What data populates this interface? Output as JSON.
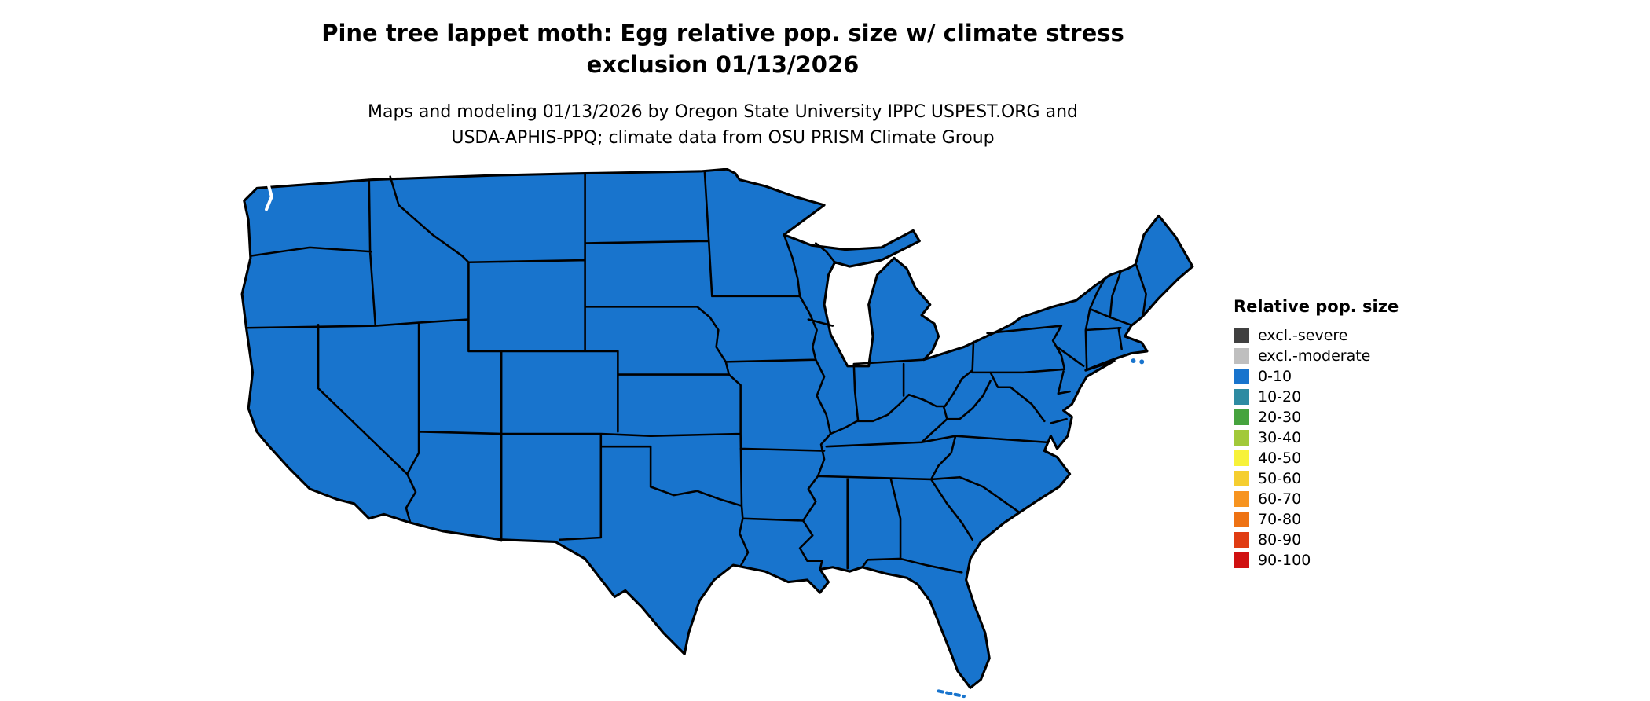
{
  "title": {
    "line1": "Pine tree lappet moth: Egg relative pop. size w/ climate stress",
    "line2": "exclusion 01/13/2026"
  },
  "subtitle": {
    "line1": "Maps and modeling 01/13/2026 by Oregon State University IPPC USPEST.ORG and",
    "line2": "USDA-APHIS-PPQ; climate data from OSU PRISM Climate Group"
  },
  "legend": {
    "title": "Relative pop. size",
    "entries": [
      {
        "label": "excl.-severe",
        "color": "#404040"
      },
      {
        "label": "excl.-moderate",
        "color": "#bfbfbf"
      },
      {
        "label": "0-10",
        "color": "#1874CD"
      },
      {
        "label": "10-20",
        "color": "#2E8BA2"
      },
      {
        "label": "20-30",
        "color": "#46A33E"
      },
      {
        "label": "30-40",
        "color": "#A2C93A"
      },
      {
        "label": "40-50",
        "color": "#F7F23A"
      },
      {
        "label": "50-60",
        "color": "#F5CE30"
      },
      {
        "label": "60-70",
        "color": "#F79420"
      },
      {
        "label": "70-80",
        "color": "#EE7213"
      },
      {
        "label": "80-90",
        "color": "#E03C12"
      },
      {
        "label": "90-100",
        "color": "#D01111"
      }
    ]
  },
  "map": {
    "region": "Contiguous United States",
    "land_fill": "#1874CD",
    "border_color": "#000000",
    "water_detail_color": "#3E8FD6",
    "uniform_class": "0-10"
  },
  "chart_data": {
    "type": "heatmap",
    "subtype": "choropleth-map",
    "region": "contiguous United States (48 states, state boundaries shown)",
    "date_shown": "01/13/2026",
    "value_classes": [
      "excl.-severe",
      "excl.-moderate",
      "0-10",
      "10-20",
      "20-30",
      "30-40",
      "40-50",
      "50-60",
      "60-70",
      "70-80",
      "80-90",
      "90-100"
    ],
    "depicted_values": "All mapped land area rendered in the 0-10 relative population size class (uniform blue)",
    "legend_position": "right"
  }
}
